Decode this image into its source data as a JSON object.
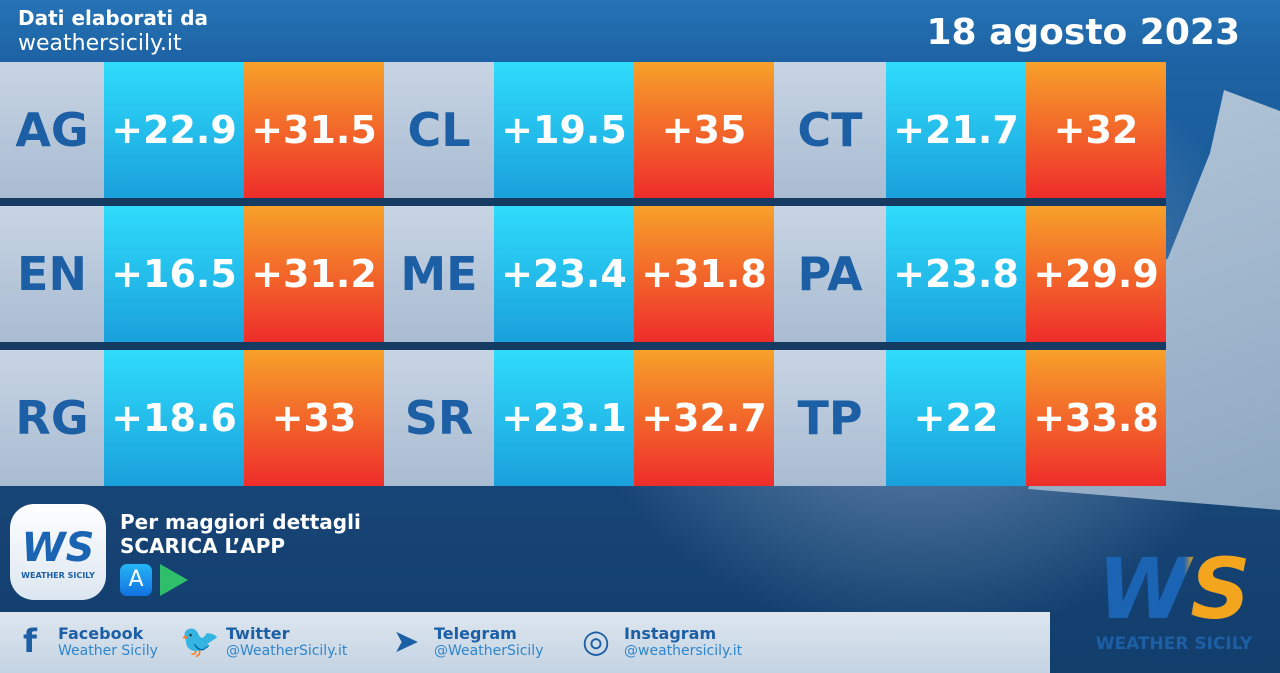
{
  "header": {
    "line1": "Dati elaborati da",
    "line2": "weathersicily.it",
    "date": "18 agosto 2023"
  },
  "rows": [
    [
      {
        "code": "AG",
        "min": "+22.9",
        "max": "+31.5"
      },
      {
        "code": "CL",
        "min": "+19.5",
        "max": "+35"
      },
      {
        "code": "CT",
        "min": "+21.7",
        "max": "+32"
      }
    ],
    [
      {
        "code": "EN",
        "min": "+16.5",
        "max": "+31.2"
      },
      {
        "code": "ME",
        "min": "+23.4",
        "max": "+31.8"
      },
      {
        "code": "PA",
        "min": "+23.8",
        "max": "+29.9"
      }
    ],
    [
      {
        "code": "RG",
        "min": "+18.6",
        "max": "+33"
      },
      {
        "code": "SR",
        "min": "+23.1",
        "max": "+32.7"
      },
      {
        "code": "TP",
        "min": "+22",
        "max": "+33.8"
      }
    ]
  ],
  "app": {
    "line1": "Per maggiori dettagli",
    "line2": "SCARICA L’APP",
    "logo_text": "WS",
    "logo_name": "WEATHER SICILY"
  },
  "social": [
    {
      "icon": "facebook-icon",
      "glyph": "f",
      "name": "Facebook",
      "handle": "Weather Sicily"
    },
    {
      "icon": "twitter-icon",
      "glyph": "🐦",
      "name": "Twitter",
      "handle": "@WeatherSicily.it"
    },
    {
      "icon": "telegram-icon",
      "glyph": "➤",
      "name": "Telegram",
      "handle": "@WeatherSicily"
    },
    {
      "icon": "instagram-icon",
      "glyph": "◎",
      "name": "Instagram",
      "handle": "@weathersicily.it"
    }
  ],
  "brand": {
    "logo_text": "WS",
    "name": "WEATHER SICILY"
  }
}
